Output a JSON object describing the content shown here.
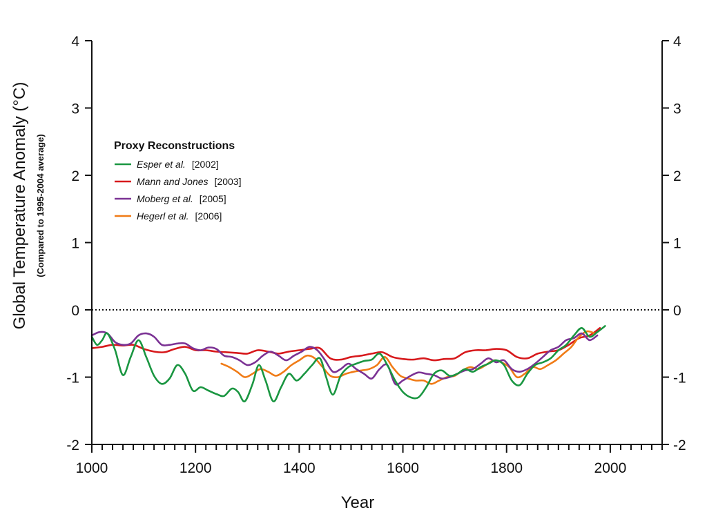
{
  "chart_data": {
    "type": "line",
    "xlabel": "Year",
    "ylabel": "Global Temperature Anomaly (°C)",
    "ylabel_sub": "(Compared to 1995-2004 average)",
    "xlim": [
      1000,
      2100
    ],
    "ylim": [
      -2,
      4
    ],
    "x_ticks": [
      "1000",
      "1200",
      "1400",
      "1600",
      "1800",
      "2000"
    ],
    "y_ticks": [
      "4",
      "3",
      "2",
      "1",
      "0",
      "-1",
      "-2"
    ],
    "reference_line": 0,
    "legend": {
      "title": "Proxy Reconstructions",
      "placement": "upper-left"
    },
    "series": [
      {
        "name": "Esper et al.",
        "ref": "[2002]",
        "color": "#1a9641",
        "x": [
          1000,
          1010,
          1020,
          1030,
          1045,
          1060,
          1075,
          1090,
          1105,
          1120,
          1135,
          1150,
          1165,
          1180,
          1195,
          1210,
          1225,
          1240,
          1255,
          1270,
          1282,
          1295,
          1310,
          1322,
          1335,
          1350,
          1365,
          1380,
          1395,
          1410,
          1425,
          1440,
          1452,
          1465,
          1480,
          1495,
          1510,
          1525,
          1540,
          1555,
          1570,
          1585,
          1600,
          1615,
          1630,
          1645,
          1660,
          1675,
          1690,
          1705,
          1720,
          1735,
          1750,
          1765,
          1780,
          1795,
          1810,
          1825,
          1840,
          1855,
          1870,
          1885,
          1900,
          1915,
          1930,
          1945,
          1960,
          1975,
          1990
        ],
        "y": [
          -0.4,
          -0.52,
          -0.45,
          -0.35,
          -0.6,
          -0.97,
          -0.7,
          -0.45,
          -0.7,
          -0.98,
          -1.1,
          -1.02,
          -0.82,
          -0.95,
          -1.2,
          -1.15,
          -1.2,
          -1.25,
          -1.28,
          -1.17,
          -1.22,
          -1.36,
          -1.1,
          -0.82,
          -1.05,
          -1.36,
          -1.15,
          -0.95,
          -1.05,
          -0.95,
          -0.82,
          -0.72,
          -1.0,
          -1.26,
          -0.98,
          -0.85,
          -0.8,
          -0.76,
          -0.74,
          -0.65,
          -0.82,
          -1.05,
          -1.22,
          -1.3,
          -1.3,
          -1.15,
          -0.95,
          -0.9,
          -0.98,
          -0.95,
          -0.88,
          -0.92,
          -0.85,
          -0.8,
          -0.75,
          -0.82,
          -1.05,
          -1.12,
          -0.95,
          -0.82,
          -0.78,
          -0.72,
          -0.6,
          -0.52,
          -0.38,
          -0.27,
          -0.4,
          -0.33,
          -0.24
        ]
      },
      {
        "name": "Mann and Jones",
        "ref": "[2003]",
        "color": "#d7191c",
        "x": [
          1000,
          1020,
          1040,
          1060,
          1080,
          1100,
          1120,
          1140,
          1160,
          1180,
          1200,
          1220,
          1240,
          1260,
          1280,
          1300,
          1320,
          1340,
          1360,
          1380,
          1400,
          1420,
          1440,
          1460,
          1480,
          1500,
          1520,
          1540,
          1560,
          1580,
          1600,
          1620,
          1640,
          1660,
          1680,
          1700,
          1720,
          1740,
          1760,
          1780,
          1800,
          1820,
          1840,
          1860,
          1880,
          1900,
          1920,
          1940,
          1960,
          1980
        ],
        "y": [
          -0.57,
          -0.55,
          -0.52,
          -0.53,
          -0.52,
          -0.58,
          -0.62,
          -0.63,
          -0.58,
          -0.55,
          -0.6,
          -0.6,
          -0.62,
          -0.63,
          -0.64,
          -0.65,
          -0.6,
          -0.62,
          -0.65,
          -0.62,
          -0.6,
          -0.58,
          -0.57,
          -0.72,
          -0.74,
          -0.7,
          -0.68,
          -0.65,
          -0.63,
          -0.7,
          -0.73,
          -0.74,
          -0.72,
          -0.75,
          -0.73,
          -0.72,
          -0.63,
          -0.6,
          -0.6,
          -0.58,
          -0.6,
          -0.7,
          -0.72,
          -0.65,
          -0.62,
          -0.6,
          -0.52,
          -0.42,
          -0.38,
          -0.27
        ]
      },
      {
        "name": "Moberg et al.",
        "ref": "[2005]",
        "color": "#7b3294",
        "x": [
          1000,
          1015,
          1030,
          1045,
          1060,
          1075,
          1090,
          1105,
          1120,
          1135,
          1150,
          1165,
          1180,
          1195,
          1210,
          1225,
          1240,
          1255,
          1270,
          1285,
          1300,
          1315,
          1330,
          1345,
          1360,
          1375,
          1390,
          1405,
          1420,
          1435,
          1450,
          1465,
          1480,
          1495,
          1510,
          1525,
          1540,
          1555,
          1570,
          1585,
          1600,
          1615,
          1630,
          1645,
          1660,
          1675,
          1690,
          1705,
          1720,
          1735,
          1750,
          1765,
          1780,
          1795,
          1810,
          1825,
          1840,
          1855,
          1870,
          1885,
          1900,
          1915,
          1930,
          1945,
          1960,
          1975
        ],
        "y": [
          -0.38,
          -0.33,
          -0.35,
          -0.48,
          -0.52,
          -0.5,
          -0.38,
          -0.35,
          -0.4,
          -0.52,
          -0.52,
          -0.5,
          -0.5,
          -0.57,
          -0.6,
          -0.56,
          -0.58,
          -0.68,
          -0.7,
          -0.75,
          -0.82,
          -0.78,
          -0.68,
          -0.62,
          -0.68,
          -0.75,
          -0.68,
          -0.62,
          -0.55,
          -0.6,
          -0.75,
          -0.92,
          -0.88,
          -0.8,
          -0.88,
          -0.95,
          -1.02,
          -0.88,
          -0.82,
          -1.1,
          -1.05,
          -0.98,
          -0.93,
          -0.95,
          -0.97,
          -1.02,
          -1.0,
          -0.95,
          -0.9,
          -0.88,
          -0.8,
          -0.72,
          -0.78,
          -0.75,
          -0.88,
          -0.92,
          -0.88,
          -0.8,
          -0.7,
          -0.6,
          -0.55,
          -0.45,
          -0.42,
          -0.35,
          -0.45,
          -0.38
        ]
      },
      {
        "name": "Hegerl et al.",
        "ref": "[2006]",
        "color": "#f07b16",
        "x": [
          1250,
          1265,
          1280,
          1295,
          1310,
          1325,
          1340,
          1355,
          1370,
          1385,
          1400,
          1415,
          1430,
          1445,
          1460,
          1475,
          1490,
          1505,
          1520,
          1535,
          1550,
          1565,
          1580,
          1595,
          1610,
          1625,
          1640,
          1655,
          1670,
          1685,
          1700,
          1715,
          1730,
          1745,
          1760,
          1775,
          1790,
          1805,
          1820,
          1835,
          1850,
          1865,
          1880,
          1895,
          1910,
          1925,
          1940,
          1955,
          1970
        ],
        "y": [
          -0.8,
          -0.85,
          -0.92,
          -1.0,
          -0.95,
          -0.88,
          -0.92,
          -0.98,
          -0.92,
          -0.82,
          -0.75,
          -0.68,
          -0.72,
          -0.85,
          -0.98,
          -1.0,
          -0.95,
          -0.92,
          -0.9,
          -0.88,
          -0.82,
          -0.7,
          -0.85,
          -0.98,
          -1.02,
          -1.05,
          -1.05,
          -1.1,
          -1.05,
          -1.0,
          -0.98,
          -0.9,
          -0.85,
          -0.88,
          -0.82,
          -0.75,
          -0.78,
          -0.85,
          -1.0,
          -0.95,
          -0.85,
          -0.88,
          -0.82,
          -0.75,
          -0.65,
          -0.55,
          -0.4,
          -0.32,
          -0.35
        ]
      }
    ]
  }
}
